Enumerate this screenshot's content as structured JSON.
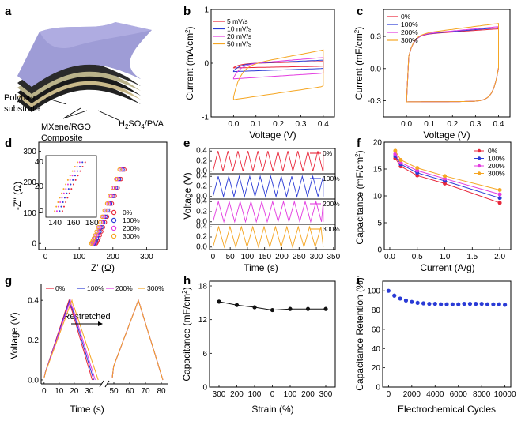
{
  "panels": {
    "a": "a",
    "b": "b",
    "c": "c",
    "d": "d",
    "e": "e",
    "f": "f",
    "g": "g",
    "h": "h",
    "i": "i"
  },
  "device": {
    "label_polymer_1": "Polymer",
    "label_polymer_2": "substrate",
    "label_composite_1": "MXene/RGO",
    "label_composite_2": "Composite",
    "label_electrolyte_pre": "H",
    "label_electrolyte_sub": "2",
    "label_electrolyte_mid": "SO",
    "label_electrolyte_sub2": "4",
    "label_electrolyte_post": "/PVA"
  },
  "colors": {
    "orange": "#f5a623",
    "magenta": "#e33be0",
    "blue": "#2a3bd6",
    "red": "#e8263a",
    "black": "#111111"
  },
  "chart_data": [
    {
      "id": "b",
      "type": "line",
      "title": "",
      "xlabel": "Voltage (V)",
      "ylabel": "Current (mA/cm2)",
      "ylabel_pre": "Current (mA/cm",
      "ylabel_sup": "2",
      "ylabel_post": ")",
      "xlim": [
        -0.1,
        0.45
      ],
      "ylim": [
        -1,
        1
      ],
      "xticks": [
        "0.0",
        "0.1",
        "0.2",
        "0.3",
        "0.4"
      ],
      "yticks": [
        "-1",
        "0",
        "1"
      ],
      "series": [
        {
          "name": "5 mV/s",
          "amplitude": 0.09
        },
        {
          "name": "10 mV/s",
          "amplitude": 0.16
        },
        {
          "name": "20 mV/s",
          "amplitude": 0.3
        },
        {
          "name": "50 mV/s",
          "amplitude": 0.7
        }
      ]
    },
    {
      "id": "c",
      "type": "line",
      "xlabel": "Voltage (V)",
      "ylabel": "Current (mF/cm2)",
      "ylabel_pre": "Current (mF/cm",
      "ylabel_sup": "2",
      "ylabel_post": ")",
      "xlim": [
        -0.1,
        0.45
      ],
      "ylim": [
        -0.45,
        0.55
      ],
      "xticks": [
        "0.0",
        "0.1",
        "0.2",
        "0.3",
        "0.4"
      ],
      "yticks": [
        "-0.3",
        "0.0",
        "0.3"
      ],
      "series": [
        {
          "name": "0%",
          "top_end": 0.37
        },
        {
          "name": "100%",
          "top_end": 0.38
        },
        {
          "name": "200%",
          "top_end": 0.39
        },
        {
          "name": "300%",
          "top_end": 0.42
        }
      ]
    },
    {
      "id": "d",
      "type": "scatter",
      "xlabel": "Z' (Ω)",
      "ylabel": "-Z'' (Ω)",
      "xlim": [
        -20,
        360
      ],
      "ylim": [
        -20,
        330
      ],
      "xticks": [
        "0",
        "100",
        "200",
        "300"
      ],
      "yticks": [
        "0",
        "100",
        "200",
        "300"
      ],
      "inset": {
        "xticks": [
          "140",
          "160",
          "180"
        ],
        "yticks": [
          "0",
          "20",
          "40"
        ]
      },
      "series": [
        {
          "name": "0%",
          "x_offset": 10
        },
        {
          "name": "100%",
          "x_offset": 5
        },
        {
          "name": "200%",
          "x_offset": 0
        },
        {
          "name": "300%",
          "x_offset": -4
        }
      ]
    },
    {
      "id": "e",
      "type": "line",
      "xlabel": "Time (s)",
      "ylabel": "Voltage (V)",
      "xlim": [
        -10,
        355
      ],
      "xticks": [
        "0",
        "50",
        "100",
        "150",
        "200",
        "250",
        "300",
        "350"
      ],
      "subplot_yticks": [
        "0.0",
        "0.2",
        "0.4"
      ],
      "series": [
        {
          "name": "0%",
          "period": 29
        },
        {
          "name": "100%",
          "period": 30.5
        },
        {
          "name": "200%",
          "period": 31.5
        },
        {
          "name": "300%",
          "period": 33
        }
      ]
    },
    {
      "id": "f",
      "type": "line",
      "xlabel": "Current (A/g)",
      "ylabel": "Capacitance (mF/cm2)",
      "ylabel_pre": "Capacitance (mF/cm",
      "ylabel_sup": "2",
      "ylabel_post": ")",
      "xlim": [
        -0.1,
        2.2
      ],
      "ylim": [
        0,
        20
      ],
      "xticks": [
        "0.0",
        "0.5",
        "1.0",
        "1.5",
        "2.0"
      ],
      "yticks": [
        "0",
        "5",
        "10",
        "15",
        "20"
      ],
      "x": [
        0.1,
        0.2,
        0.5,
        1.0,
        2.0
      ],
      "series": [
        {
          "name": "0%",
          "values": [
            17.0,
            15.5,
            13.8,
            12.3,
            8.7
          ]
        },
        {
          "name": "100%",
          "values": [
            17.4,
            15.9,
            14.3,
            12.8,
            9.6
          ]
        },
        {
          "name": "200%",
          "values": [
            17.8,
            16.2,
            14.7,
            13.2,
            10.3
          ]
        },
        {
          "name": "300%",
          "values": [
            18.4,
            16.7,
            15.2,
            13.7,
            11.1
          ]
        }
      ]
    },
    {
      "id": "g",
      "type": "line",
      "xlabel": "Time (s)",
      "ylabel": "Voltage (V)",
      "annotation": "Restretched",
      "ylim": [
        -0.02,
        0.48
      ],
      "xticks": [
        "0",
        "10",
        "20",
        "30",
        "50",
        "60",
        "70",
        "80"
      ],
      "yticks": [
        "0.0",
        "0.2",
        "0.4"
      ],
      "series": [
        {
          "name": "0%",
          "peak_time": 16.5,
          "end_time": 32
        },
        {
          "name": "100%",
          "peak_time": 17,
          "end_time": 33
        },
        {
          "name": "200%",
          "peak_time": 17.5,
          "end_time": 34
        },
        {
          "name": "300%",
          "peak_time": 18.5,
          "end_time": 36
        }
      ]
    },
    {
      "id": "h",
      "type": "line",
      "xlabel": "Strain (%)",
      "ylabel": "Capacitance (mF/cm2)",
      "ylabel_pre": "Capacitance (mF/cm",
      "ylabel_sup": "2",
      "ylabel_post": ")",
      "ylim": [
        0,
        18
      ],
      "categories": [
        "300",
        "200",
        "100",
        "0",
        "100",
        "200",
        "300"
      ],
      "yticks": [
        "0",
        "6",
        "12",
        "18"
      ],
      "values": [
        15.2,
        14.6,
        14.2,
        13.7,
        13.9,
        13.9,
        13.9
      ]
    },
    {
      "id": "i",
      "type": "scatter",
      "xlabel": "Electrochemical Cycles",
      "ylabel": "Capacitance Retention (%)",
      "xlim": [
        -500,
        10500
      ],
      "ylim": [
        0,
        110
      ],
      "xticks": [
        "0",
        "2000",
        "4000",
        "6000",
        "8000",
        "10000"
      ],
      "yticks": [
        "0",
        "20",
        "40",
        "60",
        "80",
        "100"
      ],
      "x": [
        0,
        500,
        1000,
        1500,
        2000,
        2500,
        3000,
        3500,
        4000,
        4500,
        5000,
        5500,
        6000,
        6500,
        7000,
        7500,
        8000,
        8500,
        9000,
        9500,
        10000
      ],
      "values": [
        100,
        95,
        92,
        90,
        88.5,
        87.5,
        87,
        86.5,
        86.5,
        86,
        86,
        86,
        86,
        86.5,
        86.5,
        86.5,
        86.5,
        86,
        86,
        86,
        85.5
      ]
    }
  ]
}
